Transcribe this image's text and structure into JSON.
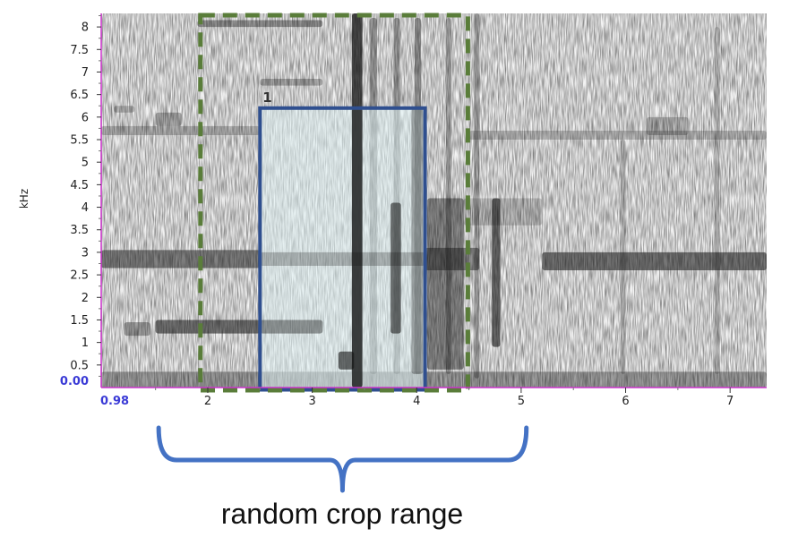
{
  "spectrogram": {
    "y_unit": "kHz",
    "y_ticks": [
      "0.5",
      "1",
      "1.5",
      "2",
      "2.5",
      "3",
      "3.5",
      "4",
      "4.5",
      "5",
      "5.5",
      "6",
      "6.5",
      "7",
      "7.5",
      "8"
    ],
    "y_origin": "0.00",
    "x_origin": "0.98",
    "x_ticks": [
      "2",
      "3",
      "4",
      "5",
      "6",
      "7"
    ],
    "time_range_s": [
      0.98,
      7.35
    ],
    "freq_range_khz": [
      0,
      8.3
    ],
    "colors": {
      "axis": "#cc33cc",
      "origin_label": "#3a3ad6"
    }
  },
  "crop_range_box": {
    "start_s": 1.93,
    "end_s": 4.49,
    "freq_top_khz": 8.3,
    "color": "#5a7d3a"
  },
  "detection_box": {
    "tag": "1",
    "start_s": 2.5,
    "end_s": 4.08,
    "freq_low_khz": -0.05,
    "freq_high_khz": 6.2,
    "color": "#2f4f8f",
    "fill": "#dff1f3"
  },
  "brace": {
    "start_s": 1.53,
    "end_s": 5.05,
    "color": "#4472c4"
  },
  "caption": "random crop range"
}
